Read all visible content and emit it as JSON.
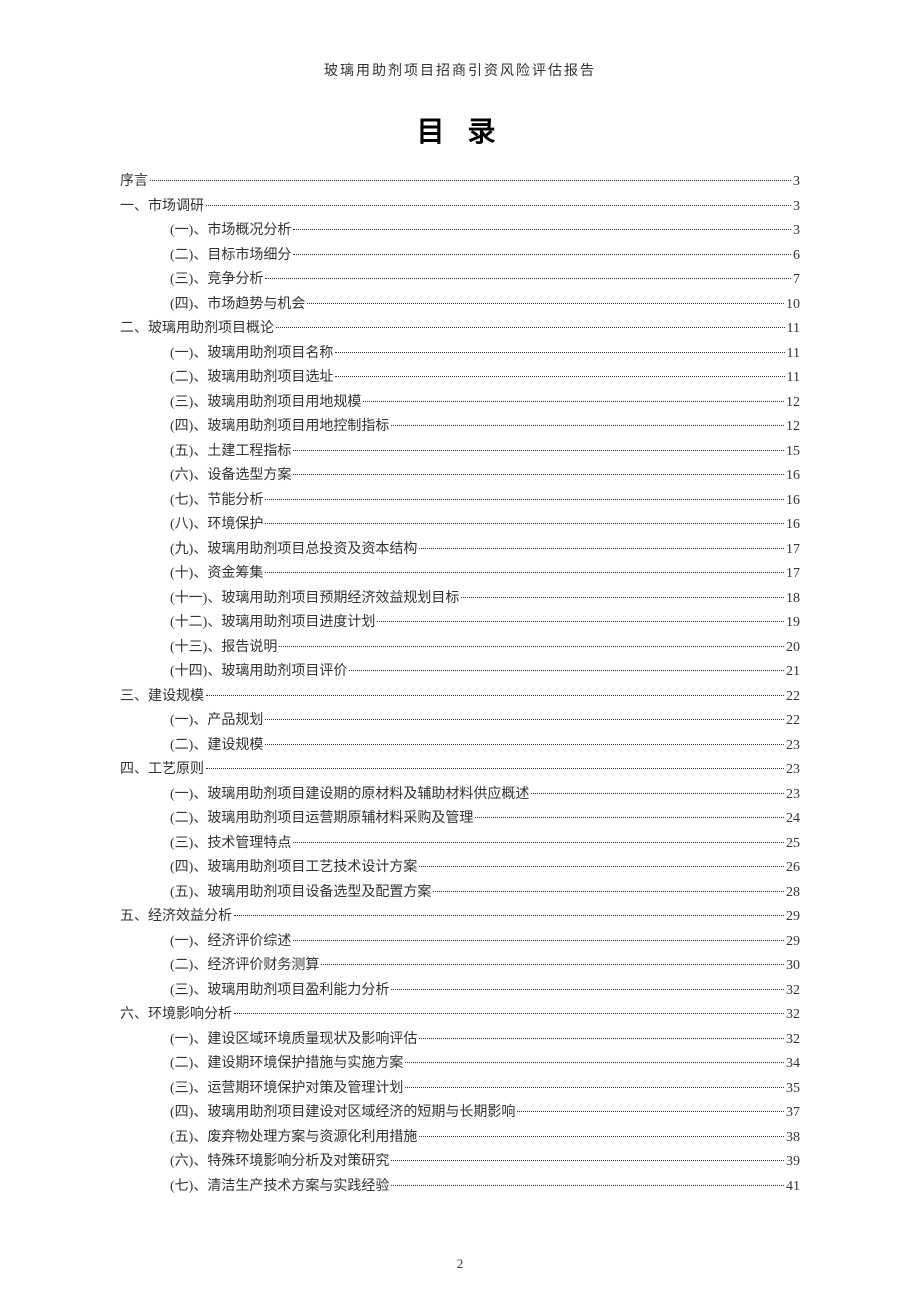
{
  "header_title": "玻璃用助剂项目招商引资风险评估报告",
  "main_title": "目 录",
  "page_number": "2",
  "toc_entries": [
    {
      "label": "序言",
      "page": "3",
      "level": 0
    },
    {
      "label": "一、市场调研",
      "page": "3",
      "level": 1
    },
    {
      "label": "(一)、市场概况分析",
      "page": "3",
      "level": 2
    },
    {
      "label": "(二)、目标市场细分",
      "page": "6",
      "level": 2
    },
    {
      "label": "(三)、竞争分析",
      "page": "7",
      "level": 2
    },
    {
      "label": "(四)、市场趋势与机会",
      "page": "10",
      "level": 2
    },
    {
      "label": "二、玻璃用助剂项目概论",
      "page": "11",
      "level": 1
    },
    {
      "label": "(一)、玻璃用助剂项目名称",
      "page": "11",
      "level": 2
    },
    {
      "label": "(二)、玻璃用助剂项目选址",
      "page": "11",
      "level": 2
    },
    {
      "label": "(三)、玻璃用助剂项目用地规模",
      "page": "12",
      "level": 2
    },
    {
      "label": "(四)、玻璃用助剂项目用地控制指标",
      "page": "12",
      "level": 2
    },
    {
      "label": "(五)、土建工程指标",
      "page": "15",
      "level": 2
    },
    {
      "label": "(六)、设备选型方案",
      "page": "16",
      "level": 2
    },
    {
      "label": "(七)、节能分析",
      "page": "16",
      "level": 2
    },
    {
      "label": "(八)、环境保护",
      "page": "16",
      "level": 2
    },
    {
      "label": "(九)、玻璃用助剂项目总投资及资本结构",
      "page": "17",
      "level": 2
    },
    {
      "label": "(十)、资金筹集",
      "page": "17",
      "level": 2
    },
    {
      "label": "(十一)、玻璃用助剂项目预期经济效益规划目标",
      "page": "18",
      "level": 2
    },
    {
      "label": "(十二)、玻璃用助剂项目进度计划",
      "page": "19",
      "level": 2
    },
    {
      "label": "(十三)、报告说明",
      "page": "20",
      "level": 2
    },
    {
      "label": "(十四)、玻璃用助剂项目评价",
      "page": "21",
      "level": 2
    },
    {
      "label": "三、建设规模",
      "page": "22",
      "level": 1
    },
    {
      "label": "(一)、产品规划",
      "page": "22",
      "level": 2
    },
    {
      "label": "(二)、建设规模",
      "page": "23",
      "level": 2
    },
    {
      "label": "四、工艺原则",
      "page": "23",
      "level": 1
    },
    {
      "label": "(一)、玻璃用助剂项目建设期的原材料及辅助材料供应概述",
      "page": "23",
      "level": 2
    },
    {
      "label": "(二)、玻璃用助剂项目运营期原辅材料采购及管理",
      "page": "24",
      "level": 2
    },
    {
      "label": "(三)、技术管理特点",
      "page": "25",
      "level": 2
    },
    {
      "label": "(四)、玻璃用助剂项目工艺技术设计方案",
      "page": "26",
      "level": 2
    },
    {
      "label": "(五)、玻璃用助剂项目设备选型及配置方案",
      "page": "28",
      "level": 2
    },
    {
      "label": "五、经济效益分析",
      "page": "29",
      "level": 1
    },
    {
      "label": "(一)、经济评价综述",
      "page": "29",
      "level": 2
    },
    {
      "label": "(二)、经济评价财务测算",
      "page": "30",
      "level": 2
    },
    {
      "label": "(三)、玻璃用助剂项目盈利能力分析",
      "page": "32",
      "level": 2
    },
    {
      "label": "六、环境影响分析",
      "page": "32",
      "level": 1
    },
    {
      "label": "(一)、建设区域环境质量现状及影响评估",
      "page": "32",
      "level": 2
    },
    {
      "label": "(二)、建设期环境保护措施与实施方案",
      "page": "34",
      "level": 2
    },
    {
      "label": "(三)、运营期环境保护对策及管理计划",
      "page": "35",
      "level": 2
    },
    {
      "label": "(四)、玻璃用助剂项目建设对区域经济的短期与长期影响",
      "page": "37",
      "level": 2
    },
    {
      "label": "(五)、废弃物处理方案与资源化利用措施",
      "page": "38",
      "level": 2
    },
    {
      "label": "(六)、特殊环境影响分析及对策研究",
      "page": "39",
      "level": 2
    },
    {
      "label": "(七)、清洁生产技术方案与实践经验",
      "page": "41",
      "level": 2
    }
  ]
}
